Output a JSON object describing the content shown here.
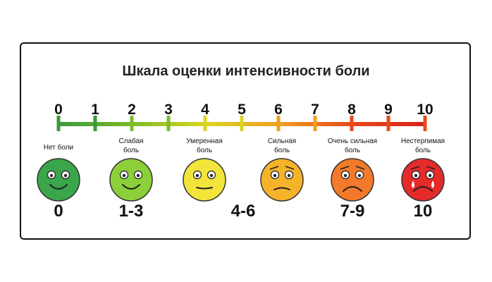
{
  "title": "Шкала оценки интенсивности боли",
  "scale": {
    "numbers": [
      "0",
      "1",
      "2",
      "3",
      "4",
      "5",
      "6",
      "7",
      "8",
      "9",
      "10"
    ],
    "gradient": [
      "#3a9a3a",
      "#7cbd2a",
      "#d9d622",
      "#f0a020",
      "#e74a1a",
      "#d9221a"
    ]
  },
  "faces": [
    {
      "caption": [
        "Нет боли"
      ],
      "color": "#3aa54a",
      "mood": "happy"
    },
    {
      "caption": [
        "Слабая",
        "боль"
      ],
      "color": "#8ccf3a",
      "mood": "happy"
    },
    {
      "caption": [
        "Умеренная",
        "боль"
      ],
      "color": "#f2e43a",
      "mood": "neutral"
    },
    {
      "caption": [
        "Сильная",
        "боль"
      ],
      "color": "#f5b32a",
      "mood": "sad"
    },
    {
      "caption": [
        "Очень сильная",
        "боль"
      ],
      "color": "#f27a2a",
      "mood": "sadder"
    },
    {
      "caption": [
        "Нестерпимая",
        "боль"
      ],
      "color": "#e52a2a",
      "mood": "crying"
    }
  ],
  "groups": [
    "0",
    "1-3",
    "4-6",
    "7-9",
    "10"
  ]
}
